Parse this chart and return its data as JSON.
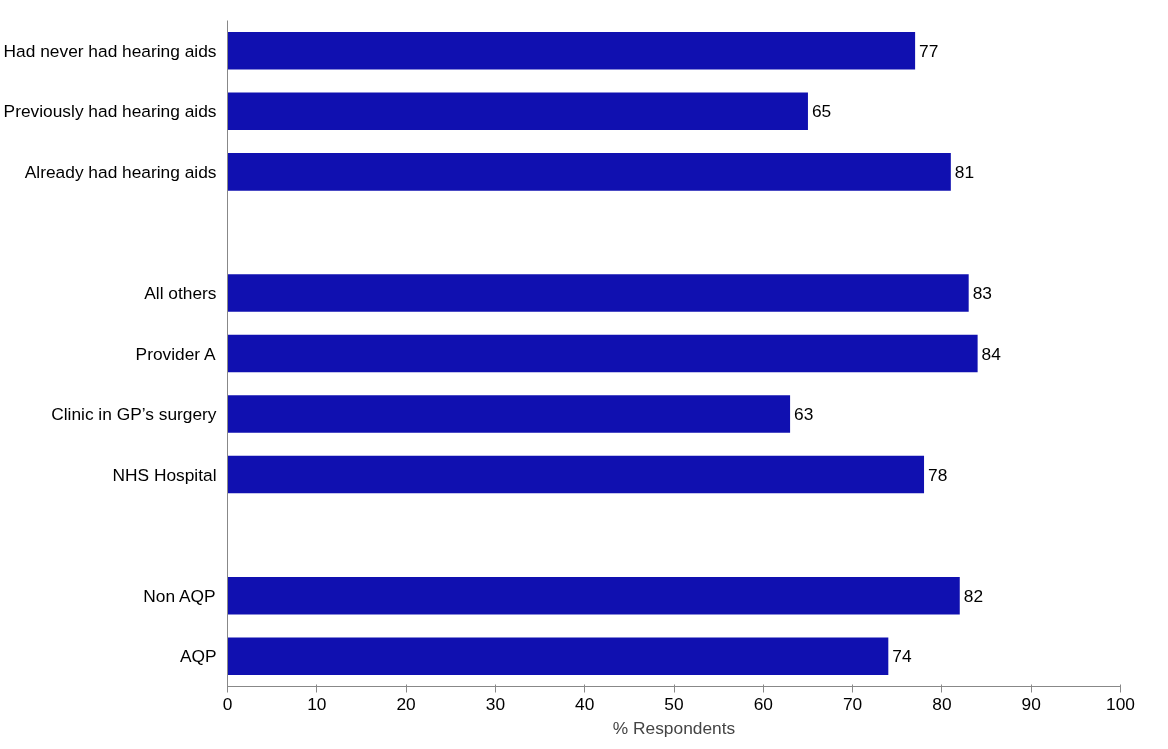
{
  "chart_data": {
    "type": "bar",
    "orientation": "horizontal",
    "xlabel": "% Respondents",
    "categories": [
      "Had never had hearing aids",
      "Previously had hearing aids",
      "Already had hearing aids",
      null,
      "All others",
      "Provider A",
      "Clinic in GP’s surgery",
      "NHS Hospital",
      null,
      "Non AQP",
      "AQP"
    ],
    "values": [
      77,
      65,
      81,
      null,
      83,
      84,
      63,
      78,
      null,
      82,
      74
    ],
    "color": "#1010b0",
    "xlim": [
      0,
      100
    ],
    "xticks": [
      0,
      10,
      20,
      30,
      40,
      50,
      60,
      70,
      80,
      90,
      100
    ],
    "grid": false,
    "data_labels": true
  }
}
